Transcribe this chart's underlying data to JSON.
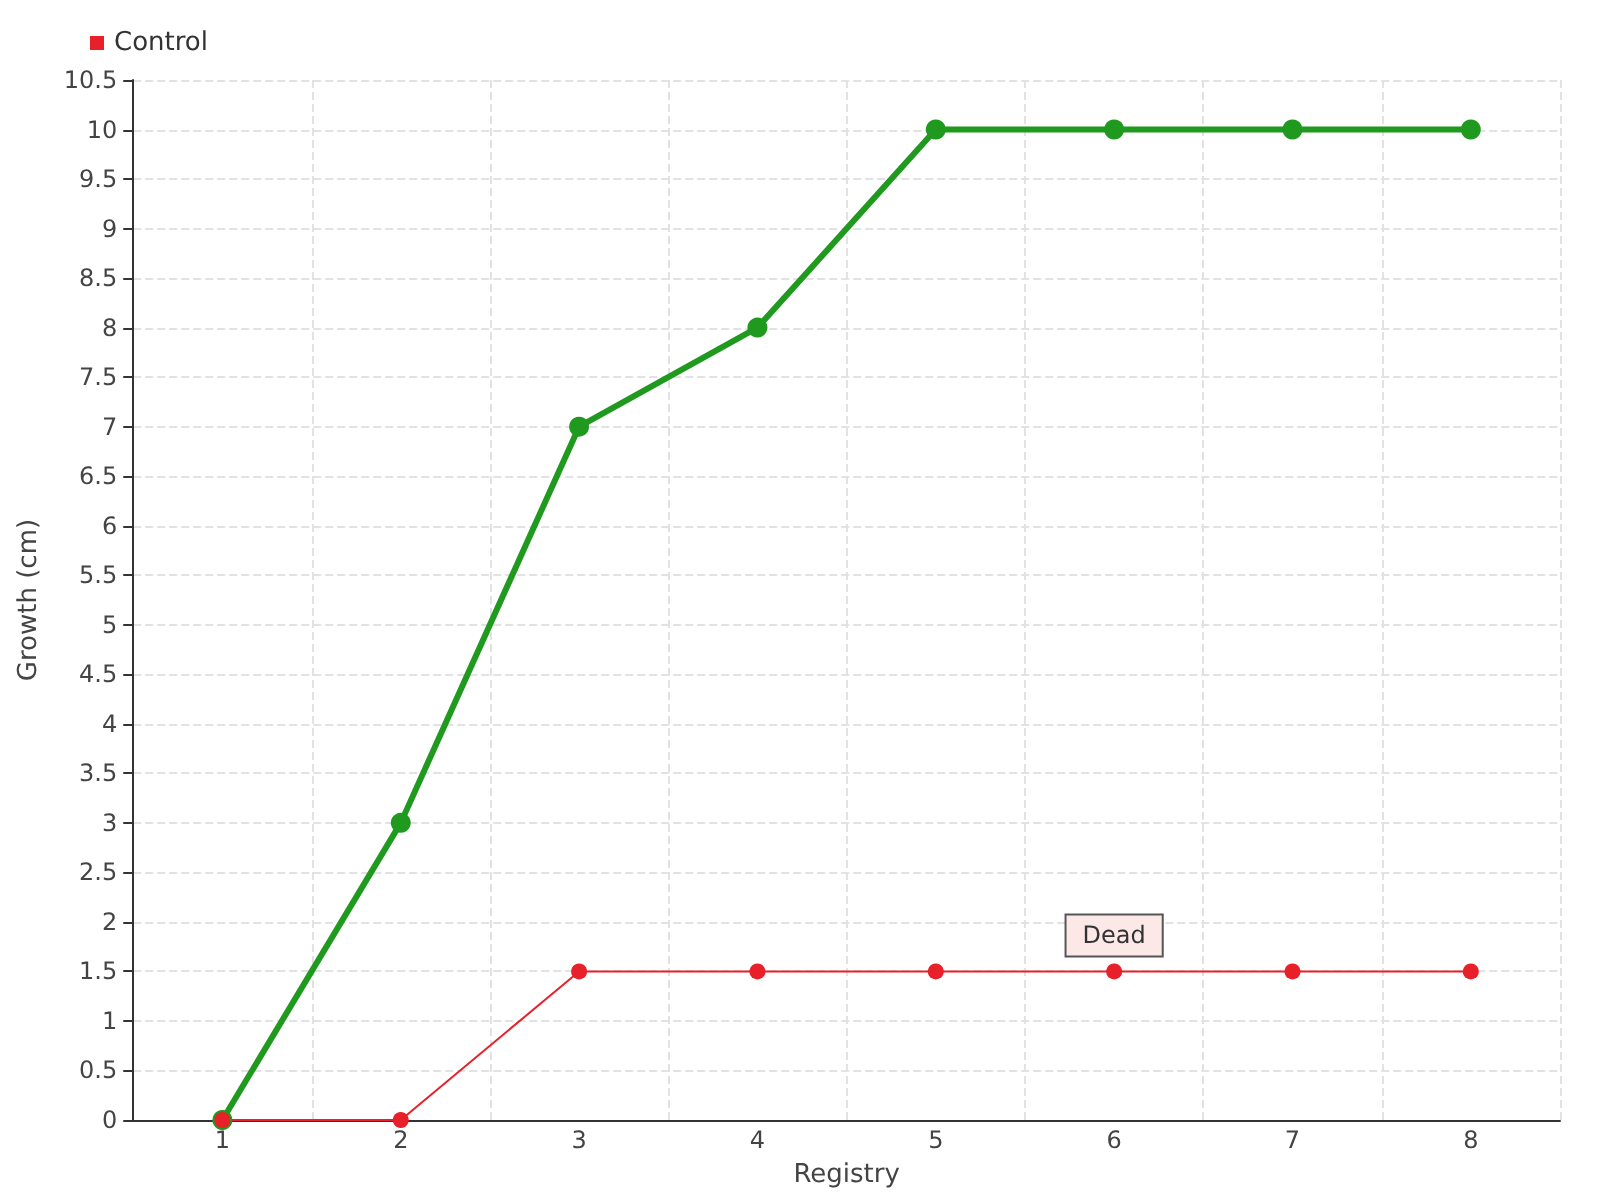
{
  "chart_data": {
    "type": "line",
    "xlabel": "Registry",
    "ylabel": "Growth (cm)",
    "categories": [
      "1",
      "2",
      "3",
      "4",
      "5",
      "6",
      "7",
      "8"
    ],
    "series": [
      {
        "color": "#1f9a1f",
        "values": [
          0,
          3,
          7,
          8,
          10,
          10,
          10,
          10
        ]
      },
      {
        "name": "Control",
        "color": "#e8202a",
        "values": [
          0,
          0,
          1.5,
          1.5,
          1.5,
          1.5,
          1.5,
          1.5
        ]
      }
    ],
    "ylim": [
      0,
      10.5
    ],
    "yticks": [
      0,
      0.5,
      1,
      1.5,
      2,
      2.5,
      3,
      3.5,
      4,
      4.5,
      5,
      5.5,
      6,
      6.5,
      7,
      7.5,
      8,
      8.5,
      9,
      9.5,
      10,
      10.5
    ],
    "annotations": [
      {
        "text": "Dead",
        "x": "6",
        "y": 1.5
      }
    ],
    "grid": true,
    "legend": "top left",
    "marker": "circle",
    "line_style": "solid"
  }
}
